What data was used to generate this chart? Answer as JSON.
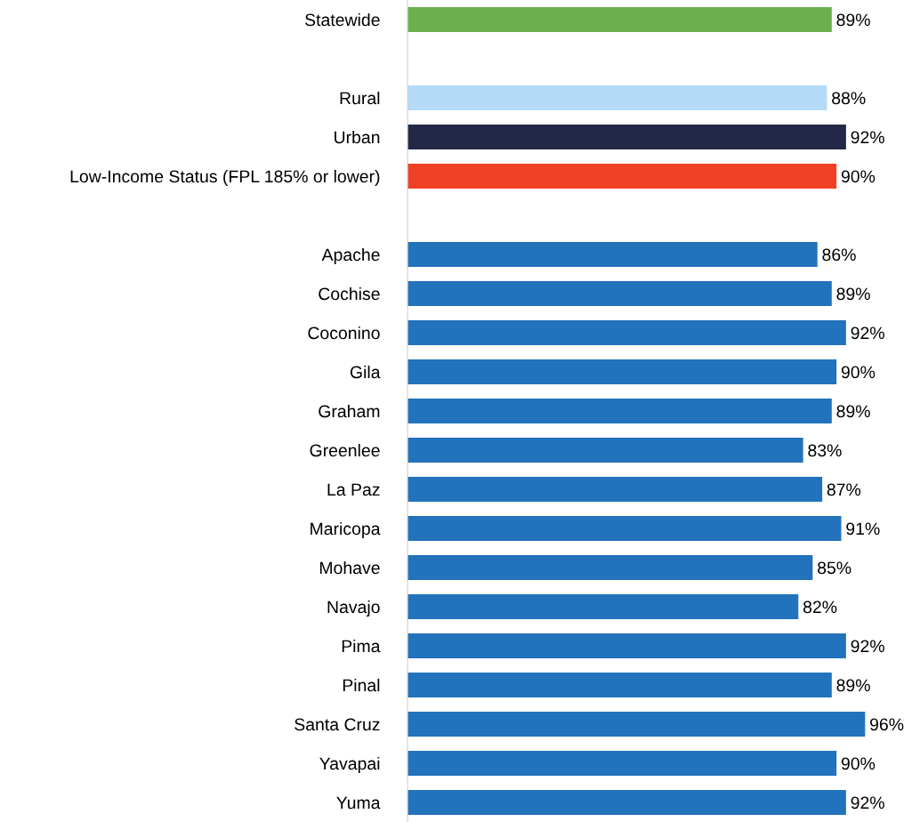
{
  "chart_data": {
    "type": "bar",
    "orientation": "horizontal",
    "categories": [
      "Statewide",
      null,
      "Rural",
      "Urban",
      "Low-Income Status (FPL 185% or lower)",
      null,
      "Apache",
      "Cochise",
      "Coconino",
      "Gila",
      "Graham",
      "Greenlee",
      "La Paz",
      "Maricopa",
      "Mohave",
      "Navajo",
      "Pima",
      "Pinal",
      "Santa Cruz",
      "Yavapai",
      "Yuma"
    ],
    "values": [
      89,
      null,
      88,
      92,
      90,
      null,
      86,
      89,
      92,
      90,
      89,
      83,
      87,
      91,
      85,
      82,
      92,
      89,
      96,
      90,
      92
    ],
    "value_labels": [
      "89%",
      null,
      "88%",
      "92%",
      "90%",
      null,
      "86%",
      "89%",
      "92%",
      "90%",
      "89%",
      "83%",
      "87%",
      "91%",
      "85%",
      "82%",
      "92%",
      "89%",
      "96%",
      "90%",
      "92%"
    ],
    "colors": [
      "#6ab04c",
      null,
      "#b4dbf7",
      "#222845",
      "#f04124",
      null,
      "#2272bc",
      "#2272bc",
      "#2272bc",
      "#2272bc",
      "#2272bc",
      "#2272bc",
      "#2272bc",
      "#2272bc",
      "#2272bc",
      "#2272bc",
      "#2272bc",
      "#2272bc",
      "#2272bc",
      "#2272bc",
      "#2272bc"
    ],
    "grid": false,
    "legend": false
  }
}
